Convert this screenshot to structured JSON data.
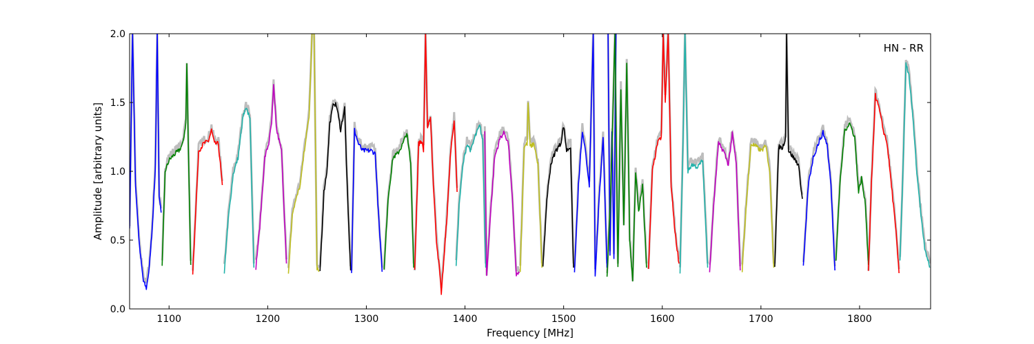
{
  "chart_data": {
    "type": "line",
    "title": "",
    "annotation": "HN - RR",
    "xlabel": "Frequency [MHz]",
    "ylabel": "Amplitude [arbitrary units]",
    "xlim": [
      1060,
      1872
    ],
    "ylim": [
      0.0,
      2.0
    ],
    "xticks": [
      1100,
      1200,
      1300,
      1400,
      1500,
      1600,
      1700,
      1800
    ],
    "xtick_labels": [
      "1100",
      "1200",
      "1300",
      "1400",
      "1500",
      "1600",
      "1700",
      "1800"
    ],
    "yticks": [
      0.0,
      0.5,
      1.0,
      1.5,
      2.0
    ],
    "ytick_labels": [
      "0.0",
      "0.5",
      "1.0",
      "1.5",
      "2.0"
    ],
    "grid": false,
    "legend": "none",
    "background_color": "#bdbdbd",
    "colors": {
      "b": "#0000ff",
      "g": "#008000",
      "r": "#ff0000",
      "c": "#20b2aa",
      "m": "#bf00bf",
      "y": "#bfbf20",
      "k": "#000000"
    },
    "series": [
      {
        "color": "b",
        "x": [
          1060,
          1063,
          1066,
          1070,
          1074,
          1077,
          1080,
          1083,
          1086,
          1088,
          1090,
          1092
        ],
        "y": [
          0.6,
          2.0,
          0.9,
          0.45,
          0.2,
          0.15,
          0.3,
          0.6,
          1.0,
          2.0,
          0.8,
          0.7
        ]
      },
      {
        "color": "g",
        "x": [
          1093,
          1096,
          1100,
          1105,
          1110,
          1114,
          1117,
          1118,
          1120,
          1122
        ],
        "y": [
          0.3,
          1.0,
          1.08,
          1.12,
          1.15,
          1.2,
          1.35,
          1.78,
          1.0,
          0.32
        ]
      },
      {
        "color": "r",
        "x": [
          1124,
          1127,
          1130,
          1135,
          1140,
          1143,
          1146,
          1150,
          1154
        ],
        "y": [
          0.26,
          0.7,
          1.15,
          1.2,
          1.22,
          1.3,
          1.2,
          1.2,
          0.9
        ]
      },
      {
        "color": "c",
        "x": [
          1156,
          1160,
          1165,
          1170,
          1175,
          1178,
          1182,
          1186
        ],
        "y": [
          0.27,
          0.65,
          0.98,
          1.1,
          1.4,
          1.45,
          1.4,
          0.3
        ]
      },
      {
        "color": "m",
        "x": [
          1188,
          1192,
          1197,
          1201,
          1204,
          1206,
          1209,
          1214,
          1219
        ],
        "y": [
          0.3,
          0.6,
          1.1,
          1.2,
          1.35,
          1.62,
          1.3,
          1.15,
          0.33
        ]
      },
      {
        "color": "y",
        "x": [
          1221,
          1225,
          1229,
          1233,
          1238,
          1242,
          1245,
          1247,
          1250,
          1252
        ],
        "y": [
          0.26,
          0.7,
          0.8,
          0.9,
          1.2,
          1.4,
          2.0,
          2.0,
          0.3,
          0.27
        ]
      },
      {
        "color": "k",
        "x": [
          1253,
          1257,
          1260,
          1263,
          1267,
          1270,
          1274,
          1278,
          1281,
          1284
        ],
        "y": [
          0.27,
          0.85,
          1.0,
          1.35,
          1.5,
          1.47,
          1.3,
          1.46,
          0.8,
          0.28
        ]
      },
      {
        "color": "b",
        "x": [
          1285,
          1288,
          1292,
          1296,
          1300,
          1305,
          1309,
          1313,
          1316
        ],
        "y": [
          0.27,
          1.3,
          1.2,
          1.15,
          1.15,
          1.15,
          1.13,
          0.6,
          0.27
        ]
      },
      {
        "color": "g",
        "x": [
          1318,
          1322,
          1327,
          1332,
          1337,
          1341,
          1345,
          1348
        ],
        "y": [
          0.28,
          0.8,
          1.1,
          1.13,
          1.2,
          1.28,
          1.05,
          0.3
        ]
      },
      {
        "color": "r",
        "x": [
          1349,
          1353,
          1356,
          1358,
          1360,
          1362,
          1365,
          1368,
          1371,
          1374,
          1376,
          1379,
          1382,
          1385,
          1389,
          1392
        ],
        "y": [
          0.28,
          1.2,
          1.22,
          1.15,
          2.0,
          1.3,
          1.4,
          0.9,
          0.5,
          0.3,
          0.12,
          0.4,
          0.7,
          1.1,
          1.38,
          0.85
        ]
      },
      {
        "color": "c",
        "x": [
          1391,
          1394,
          1398,
          1402,
          1406,
          1410,
          1415,
          1418,
          1421
        ],
        "y": [
          0.3,
          0.75,
          1.05,
          1.2,
          1.15,
          1.25,
          1.33,
          1.22,
          0.3
        ]
      },
      {
        "color": "m",
        "x": [
          1420,
          1422,
          1425,
          1430,
          1436,
          1440,
          1444,
          1448,
          1452,
          1455
        ],
        "y": [
          1.3,
          0.24,
          0.6,
          1.1,
          1.25,
          1.28,
          1.2,
          0.8,
          0.25,
          0.26
        ]
      },
      {
        "color": "y",
        "x": [
          1456,
          1460,
          1463,
          1464,
          1466,
          1470,
          1474,
          1478
        ],
        "y": [
          0.28,
          1.18,
          1.2,
          1.5,
          1.18,
          1.2,
          1.05,
          0.3
        ]
      },
      {
        "color": "k",
        "x": [
          1479,
          1483,
          1487,
          1492,
          1497,
          1500,
          1503,
          1507,
          1510
        ],
        "y": [
          0.3,
          0.8,
          1.05,
          1.15,
          1.2,
          1.33,
          1.15,
          1.18,
          0.3
        ]
      },
      {
        "color": "b",
        "x": [
          1511,
          1515,
          1519,
          1522,
          1526,
          1530,
          1532,
          1536,
          1540,
          1544
        ],
        "y": [
          0.27,
          0.9,
          1.3,
          1.15,
          0.9,
          2.0,
          0.25,
          0.8,
          1.25,
          0.3
        ]
      },
      {
        "color": "b",
        "x": [
          1545,
          1547,
          1549,
          1551,
          1553
        ],
        "y": [
          2.0,
          0.4,
          1.3,
          0.35,
          2.0
        ]
      },
      {
        "color": "g",
        "x": [
          1544,
          1548,
          1552,
          1555,
          1558,
          1561,
          1564,
          1567,
          1570,
          1573,
          1576,
          1580,
          1584
        ],
        "y": [
          0.22,
          0.9,
          2.0,
          0.3,
          1.6,
          0.6,
          1.8,
          0.5,
          0.2,
          1.0,
          0.7,
          0.9,
          0.3
        ]
      },
      {
        "color": "r",
        "x": [
          1586,
          1590,
          1595,
          1599,
          1601,
          1603,
          1606,
          1609,
          1613,
          1617
        ],
        "y": [
          0.28,
          1.0,
          1.2,
          1.25,
          2.0,
          1.5,
          2.0,
          0.9,
          0.55,
          0.33
        ]
      },
      {
        "color": "c",
        "x": [
          1618,
          1621,
          1623,
          1626,
          1630,
          1636,
          1641,
          1646
        ],
        "y": [
          0.27,
          1.2,
          2.0,
          1.0,
          1.05,
          1.03,
          1.08,
          0.3
        ]
      },
      {
        "color": "m",
        "x": [
          1648,
          1652,
          1657,
          1662,
          1667,
          1671,
          1675,
          1679
        ],
        "y": [
          0.27,
          0.75,
          1.2,
          1.15,
          1.05,
          1.27,
          1.05,
          0.28
        ]
      },
      {
        "color": "y",
        "x": [
          1681,
          1685,
          1690,
          1695,
          1700,
          1705,
          1709,
          1713
        ],
        "y": [
          0.28,
          0.75,
          1.2,
          1.18,
          1.15,
          1.18,
          1.0,
          0.3
        ]
      },
      {
        "color": "k",
        "x": [
          1714,
          1718,
          1722,
          1725,
          1726,
          1728,
          1733,
          1738,
          1742
        ],
        "y": [
          0.32,
          1.18,
          1.17,
          1.25,
          2.0,
          1.15,
          1.1,
          1.05,
          0.8
        ]
      },
      {
        "color": "b",
        "x": [
          1743,
          1748,
          1753,
          1758,
          1763,
          1767,
          1771,
          1775
        ],
        "y": [
          0.3,
          0.9,
          1.1,
          1.2,
          1.28,
          1.2,
          0.9,
          0.28
        ]
      },
      {
        "color": "g",
        "x": [
          1776,
          1780,
          1785,
          1790,
          1795,
          1799,
          1802,
          1806,
          1809
        ],
        "y": [
          0.35,
          0.9,
          1.3,
          1.35,
          1.25,
          0.85,
          0.95,
          0.75,
          0.32
        ]
      },
      {
        "color": "r",
        "x": [
          1809,
          1812,
          1816,
          1820,
          1824,
          1828,
          1833,
          1837,
          1840
        ],
        "y": [
          0.27,
          0.9,
          1.55,
          1.45,
          1.3,
          1.2,
          0.85,
          0.55,
          0.26
        ]
      },
      {
        "color": "c",
        "x": [
          1841,
          1844,
          1847,
          1850,
          1854,
          1858,
          1862,
          1866,
          1871
        ],
        "y": [
          0.35,
          1.0,
          1.78,
          1.7,
          1.4,
          1.0,
          0.7,
          0.45,
          0.3
        ]
      }
    ]
  }
}
